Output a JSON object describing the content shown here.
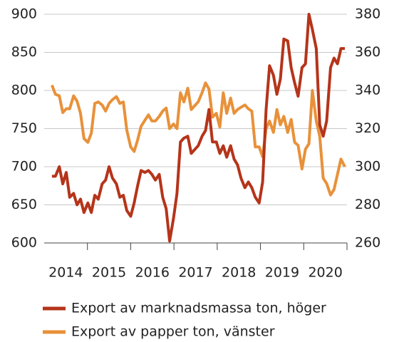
{
  "chart_data": {
    "type": "line",
    "x": [
      2014.18,
      2014.26,
      2014.35,
      2014.43,
      2014.51,
      2014.59,
      2014.68,
      2014.76,
      2014.84,
      2014.92,
      2015.01,
      2015.09,
      2015.17,
      2015.25,
      2015.34,
      2015.42,
      2015.5,
      2015.58,
      2015.67,
      2015.75,
      2015.83,
      2015.91,
      2016.0,
      2016.08,
      2016.16,
      2016.24,
      2016.33,
      2016.41,
      2016.49,
      2016.57,
      2016.66,
      2016.74,
      2016.82,
      2016.9,
      2016.99,
      2017.07,
      2017.15,
      2017.23,
      2017.32,
      2017.4,
      2017.48,
      2017.56,
      2017.65,
      2017.73,
      2017.81,
      2017.89,
      2017.98,
      2018.06,
      2018.14,
      2018.22,
      2018.31,
      2018.39,
      2018.47,
      2018.55,
      2018.64,
      2018.72,
      2018.8,
      2018.88,
      2018.97,
      2019.05,
      2019.13,
      2019.21,
      2019.3,
      2019.38,
      2019.46,
      2019.54,
      2019.63,
      2019.71,
      2019.79,
      2019.87,
      2019.96,
      2020.04,
      2020.12,
      2020.2,
      2020.29,
      2020.37,
      2020.45,
      2020.53,
      2020.62,
      2020.7,
      2020.78,
      2020.86,
      2020.95
    ],
    "series": [
      {
        "name": "Export av marknadsmassa ton, höger",
        "color": "#b5341a",
        "axis": "y2",
        "values": [
          295,
          295,
          300,
          291,
          297,
          284,
          286,
          280,
          283,
          276,
          281,
          276,
          285,
          283,
          291,
          293,
          300,
          294,
          291,
          284,
          285,
          277,
          274,
          281,
          290,
          298,
          297,
          298,
          296,
          293,
          296,
          284,
          278,
          261,
          273,
          286,
          313,
          315,
          316,
          307,
          309,
          311,
          316,
          319,
          330,
          313,
          313,
          307,
          311,
          305,
          311,
          304,
          301,
          294,
          289,
          292,
          289,
          284,
          281,
          292,
          330,
          353,
          348,
          338,
          346,
          367,
          366,
          352,
          344,
          337,
          352,
          354,
          380,
          372,
          362,
          322,
          316,
          324,
          352,
          357,
          354,
          362,
          362
        ]
      },
      {
        "name": "Export av papper ton, vänster",
        "color": "#e8913a",
        "values": [
          807,
          795,
          793,
          771,
          776,
          776,
          793,
          786,
          770,
          737,
          732,
          744,
          783,
          785,
          781,
          773,
          783,
          788,
          792,
          783,
          785,
          748,
          726,
          720,
          735,
          753,
          761,
          768,
          760,
          760,
          766,
          773,
          777,
          750,
          756,
          750,
          797,
          785,
          803,
          775,
          780,
          785,
          797,
          810,
          802,
          765,
          770,
          752,
          797,
          770,
          790,
          770,
          775,
          778,
          781,
          776,
          773,
          726,
          726,
          713,
          750,
          760,
          745,
          775,
          755,
          766,
          745,
          762,
          732,
          728,
          697,
          723,
          730,
          800,
          760,
          740,
          685,
          678,
          663,
          670,
          690,
          710,
          700
        ]
      }
    ],
    "xlim": [
      2014,
      2021
    ],
    "xticks": [
      {
        "value": 2014.5,
        "label": "2014"
      },
      {
        "value": 2015.5,
        "label": "2015"
      },
      {
        "value": 2016.5,
        "label": "2016"
      },
      {
        "value": 2017.5,
        "label": "2017"
      },
      {
        "value": 2018.5,
        "label": "2018"
      },
      {
        "value": 2019.5,
        "label": "2019"
      },
      {
        "value": 2020.5,
        "label": "2020"
      }
    ],
    "ylim": [
      600,
      900
    ],
    "yticks": [
      600,
      650,
      700,
      750,
      800,
      850,
      900
    ],
    "y2lim": [
      260,
      380
    ],
    "y2ticks": [
      260,
      280,
      300,
      320,
      340,
      360,
      380
    ],
    "grid": true,
    "legend": "bottom"
  }
}
